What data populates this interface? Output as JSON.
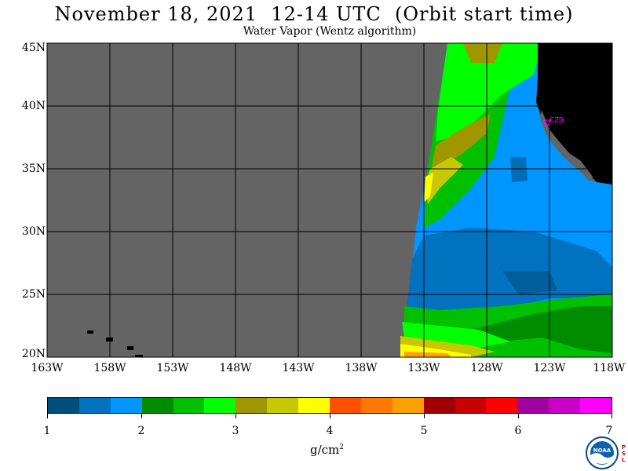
{
  "title": "November 18, 2021  12-14 UTC  (Orbit start time)",
  "subtitle": "Water Vapor (Wentz algorithm)",
  "map": {
    "lat_labels": [
      "45N",
      "40N",
      "35N",
      "30N",
      "25N",
      "20N"
    ],
    "lon_labels": [
      "163W",
      "158W",
      "153W",
      "148W",
      "143W",
      "138W",
      "133W",
      "128W",
      "123W",
      "118W"
    ],
    "station_label": "CZD",
    "colors": {
      "no_data": "#646464",
      "land": "#000000",
      "grid": "#000000",
      "station": "#ff00ff"
    }
  },
  "colorbar": {
    "tick_labels": [
      "1",
      "2",
      "3",
      "4",
      "5",
      "6",
      "7"
    ],
    "units_base": "g/cm",
    "units_exp": "2",
    "colors": [
      "#004f7a",
      "#0072c0",
      "#0096ff",
      "#008c00",
      "#00c000",
      "#00ff00",
      "#a09600",
      "#c8c800",
      "#ffff00",
      "#ff5000",
      "#ff7800",
      "#ffa000",
      "#a00000",
      "#c80000",
      "#ff0000",
      "#a000a0",
      "#c800c8",
      "#ff00ff"
    ]
  },
  "logo": {
    "name": "noaa-logo",
    "text": "NOAA",
    "side_text": "PSL"
  }
}
